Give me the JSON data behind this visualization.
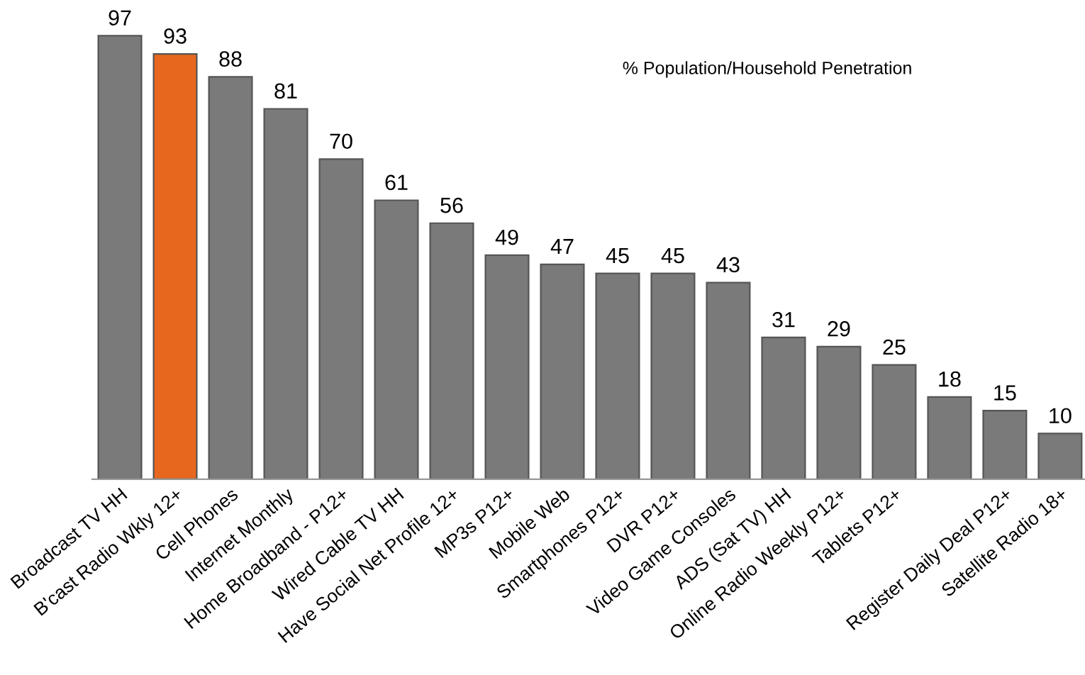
{
  "chart_data": {
    "type": "bar",
    "categories": [
      "Broadcast TV HH",
      "B'cast Radio Wkly 12+",
      "Cell Phones",
      "Internet Monthly",
      "Home Broadband - P12+",
      "Wired Cable TV HH",
      "Have Social Net Profile 12+",
      "MP3s P12+",
      "Mobile Web",
      "Smartphones P12+",
      "DVR P12+",
      "Video Game Consoles",
      "ADS (Sat TV) HH",
      "Online Radio Weekly P12+",
      "Tablets P12+",
      null,
      "Register Daily Deal P12+",
      "Satellite Radio 18+"
    ],
    "values": [
      97,
      93,
      88,
      81,
      70,
      61,
      56,
      49,
      47,
      45,
      45,
      43,
      31,
      29,
      25,
      18,
      15,
      10
    ],
    "colors": [
      "#7a7a7a",
      "#e8671e",
      "#7a7a7a",
      "#7a7a7a",
      "#7a7a7a",
      "#7a7a7a",
      "#7a7a7a",
      "#7a7a7a",
      "#7a7a7a",
      "#7a7a7a",
      "#7a7a7a",
      "#7a7a7a",
      "#7a7a7a",
      "#7a7a7a",
      "#7a7a7a",
      "#7a7a7a",
      "#7a7a7a",
      "#7a7a7a"
    ],
    "data_labels": true,
    "annotations": [
      "% Population/Household Penetration"
    ],
    "grid": false,
    "legend": false
  }
}
